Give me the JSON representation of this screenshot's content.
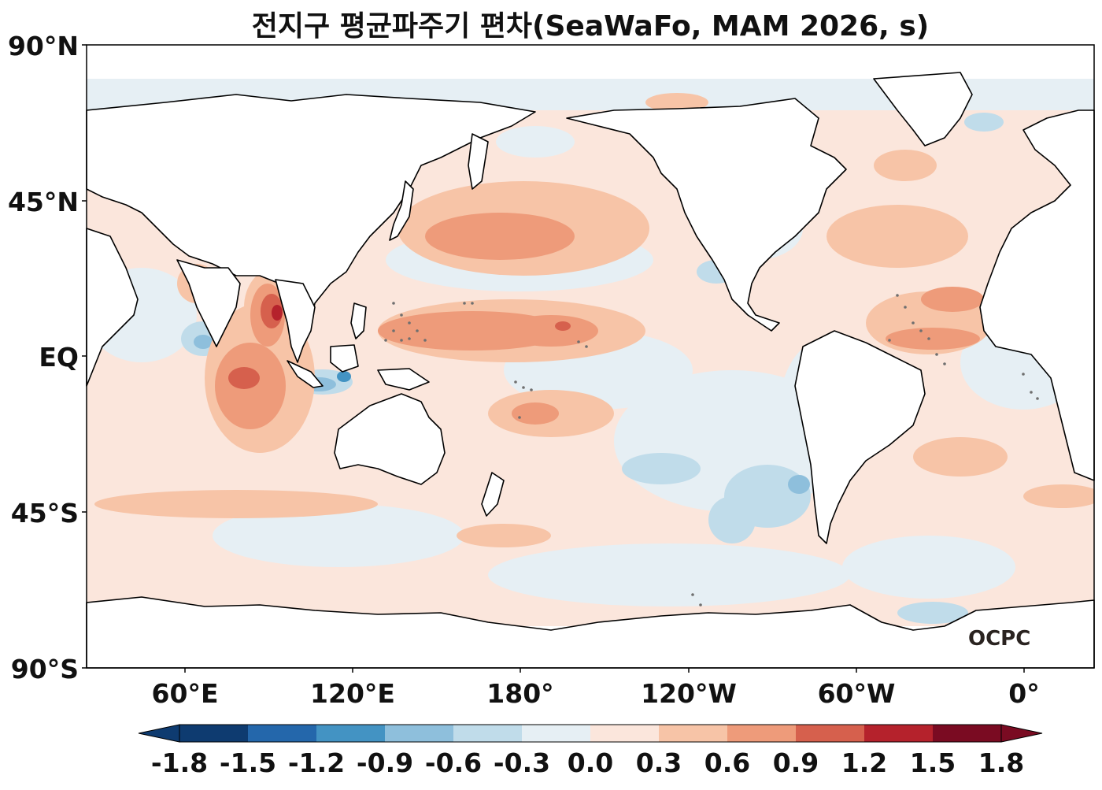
{
  "title": "전지구 평균파주기 편차(SeaWaFo, MAM 2026, s)",
  "logo": "OCPC",
  "axes": {
    "lat_labels": [
      "90°N",
      "45°N",
      "EQ",
      "45°S",
      "90°S"
    ],
    "lon_labels": [
      "60°E",
      "120°E",
      "180°",
      "120°W",
      "60°W",
      "0°"
    ]
  },
  "colorbar": {
    "ticks": [
      "-1.8",
      "-1.5",
      "-1.2",
      "-0.9",
      "-0.6",
      "-0.3",
      "0.0",
      "0.3",
      "0.6",
      "0.9",
      "1.2",
      "1.5",
      "1.8"
    ],
    "colors": [
      "#0e3b70",
      "#2467ab",
      "#4393c3",
      "#8ebfdc",
      "#c0dcea",
      "#e6eff4",
      "#fbe6dc",
      "#f7c4a7",
      "#ee9b7a",
      "#d6604d",
      "#b5222c",
      "#7a0b22"
    ],
    "extend": "both"
  },
  "map_style": {
    "projection": "equirectangular, centered at 150°W (longitude range 30°E – 30°W)",
    "field_type": "filled contours of mean wave period anomaly",
    "land_color": "#ffffff",
    "coastline_color": "#000000",
    "hatch_dots": "grey stippling over significant areas"
  }
}
